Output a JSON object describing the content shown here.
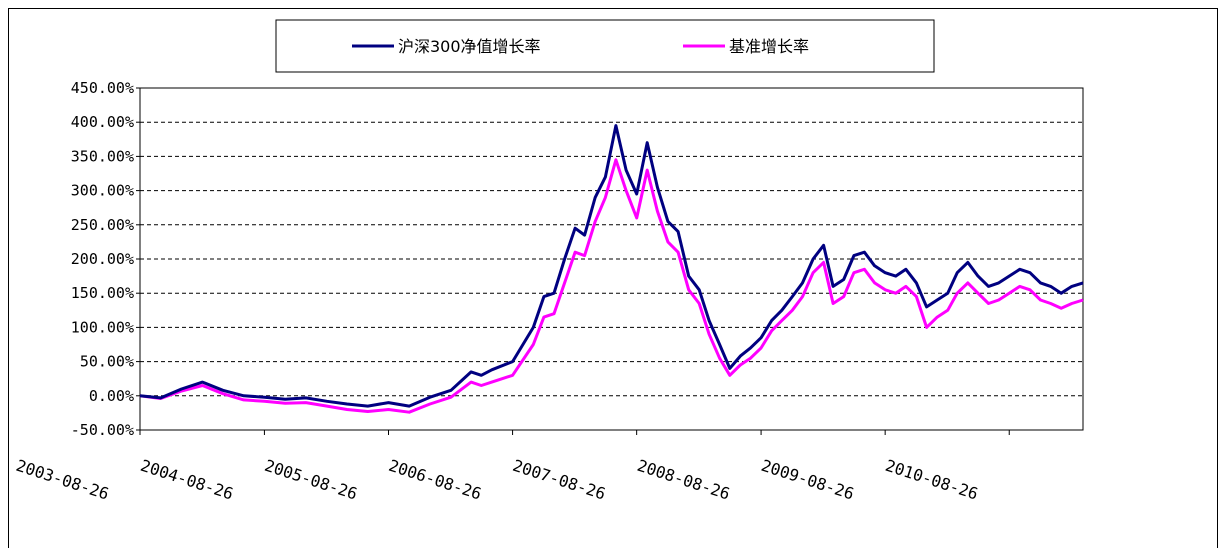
{
  "colors": {
    "series_1": "#000080",
    "series_2": "#FF00FF",
    "grid": "#000000",
    "frame": "#000000"
  },
  "chart_data": {
    "type": "line",
    "title": "",
    "xlabel": "",
    "ylabel": "",
    "ylim": [
      -50,
      450
    ],
    "y_ticks": [
      -50,
      0,
      50,
      100,
      150,
      200,
      250,
      300,
      350,
      400,
      450
    ],
    "y_tick_labels": [
      "-50.00%",
      "0.00%",
      "50.00%",
      "100.00%",
      "150.00%",
      "200.00%",
      "250.00%",
      "300.00%",
      "350.00%",
      "400.00%",
      "450.00%"
    ],
    "x_tick_labels": [
      "2003-08-26",
      "2004-08-26",
      "2005-08-26",
      "2006-08-26",
      "2007-08-26",
      "2008-08-26",
      "2009-08-26",
      "2010-08-26"
    ],
    "x_range": [
      "2003-08-26",
      "2011-03-31"
    ],
    "grid": "horizontal dashed",
    "legend_position": "top-center",
    "series": [
      {
        "name": "沪深300净值增长率",
        "x": [
          "2003-08-26",
          "2003-10-26",
          "2003-12-26",
          "2004-02-26",
          "2004-04-26",
          "2004-06-26",
          "2004-08-26",
          "2004-10-26",
          "2004-12-26",
          "2005-02-26",
          "2005-04-26",
          "2005-06-26",
          "2005-08-26",
          "2005-10-26",
          "2005-12-26",
          "2006-02-26",
          "2006-04-26",
          "2006-05-26",
          "2006-06-26",
          "2006-08-26",
          "2006-10-26",
          "2006-11-26",
          "2006-12-26",
          "2007-01-26",
          "2007-02-26",
          "2007-03-26",
          "2007-04-26",
          "2007-05-26",
          "2007-06-26",
          "2007-07-26",
          "2007-08-26",
          "2007-09-26",
          "2007-10-26",
          "2007-11-26",
          "2007-12-26",
          "2008-01-26",
          "2008-02-26",
          "2008-03-26",
          "2008-04-26",
          "2008-05-26",
          "2008-06-26",
          "2008-07-26",
          "2008-08-26",
          "2008-09-26",
          "2008-10-26",
          "2008-11-26",
          "2008-12-26",
          "2009-01-26",
          "2009-02-26",
          "2009-03-26",
          "2009-04-26",
          "2009-05-26",
          "2009-06-26",
          "2009-07-26",
          "2009-08-26",
          "2009-09-26",
          "2009-10-26",
          "2009-11-26",
          "2009-12-26",
          "2010-01-26",
          "2010-02-26",
          "2010-03-26",
          "2010-04-26",
          "2010-05-26",
          "2010-06-26",
          "2010-07-26",
          "2010-08-26",
          "2010-09-26",
          "2010-10-26",
          "2010-11-26",
          "2010-12-26",
          "2011-01-26",
          "2011-02-26",
          "2011-03-31"
        ],
        "y": [
          0,
          -3,
          10,
          20,
          8,
          0,
          -2,
          -5,
          -3,
          -8,
          -12,
          -15,
          -10,
          -15,
          -2,
          8,
          35,
          30,
          38,
          50,
          100,
          145,
          150,
          200,
          245,
          235,
          290,
          320,
          395,
          330,
          295,
          370,
          305,
          255,
          240,
          175,
          155,
          110,
          75,
          40,
          58,
          70,
          85,
          110,
          125,
          145,
          165,
          200,
          220,
          160,
          170,
          205,
          210,
          190,
          180,
          175,
          185,
          165,
          130,
          140,
          150,
          180,
          195,
          175,
          160,
          165,
          175,
          185,
          180,
          165,
          160,
          150,
          160,
          165
        ],
        "values": [
          0,
          -3,
          10,
          20,
          8,
          0,
          -2,
          -5,
          -3,
          -8,
          -12,
          -15,
          -10,
          -15,
          -2,
          8,
          35,
          30,
          38,
          50,
          100,
          145,
          150,
          200,
          245,
          235,
          290,
          320,
          395,
          330,
          295,
          370,
          305,
          255,
          240,
          175,
          155,
          110,
          75,
          40,
          58,
          70,
          85,
          110,
          125,
          145,
          165,
          200,
          220,
          160,
          170,
          205,
          210,
          190,
          180,
          175,
          185,
          165,
          130,
          140,
          150,
          180,
          195,
          175,
          160,
          165,
          175,
          185,
          180,
          165,
          160,
          150,
          160,
          165
        ]
      },
      {
        "name": "基准增长率",
        "x": [
          "2003-08-26",
          "2003-10-26",
          "2003-12-26",
          "2004-02-26",
          "2004-04-26",
          "2004-06-26",
          "2004-08-26",
          "2004-10-26",
          "2004-12-26",
          "2005-02-26",
          "2005-04-26",
          "2005-06-26",
          "2005-08-26",
          "2005-10-26",
          "2005-12-26",
          "2006-02-26",
          "2006-04-26",
          "2006-05-26",
          "2006-06-26",
          "2006-08-26",
          "2006-10-26",
          "2006-11-26",
          "2006-12-26",
          "2007-01-26",
          "2007-02-26",
          "2007-03-26",
          "2007-04-26",
          "2007-05-26",
          "2007-06-26",
          "2007-07-26",
          "2007-08-26",
          "2007-09-26",
          "2007-10-26",
          "2007-11-26",
          "2007-12-26",
          "2008-01-26",
          "2008-02-26",
          "2008-03-26",
          "2008-04-26",
          "2008-05-26",
          "2008-06-26",
          "2008-07-26",
          "2008-08-26",
          "2008-09-26",
          "2008-10-26",
          "2008-11-26",
          "2008-12-26",
          "2009-01-26",
          "2009-02-26",
          "2009-03-26",
          "2009-04-26",
          "2009-05-26",
          "2009-06-26",
          "2009-07-26",
          "2009-08-26",
          "2009-09-26",
          "2009-10-26",
          "2009-11-26",
          "2009-12-26",
          "2010-01-26",
          "2010-02-26",
          "2010-03-26",
          "2010-04-26",
          "2010-05-26",
          "2010-06-26",
          "2010-07-26",
          "2010-08-26",
          "2010-09-26",
          "2010-10-26",
          "2010-11-26",
          "2010-12-26",
          "2011-01-26",
          "2011-02-26",
          "2011-03-31"
        ],
        "y": [
          0,
          -4,
          7,
          15,
          3,
          -6,
          -8,
          -11,
          -10,
          -15,
          -20,
          -23,
          -20,
          -24,
          -12,
          -2,
          20,
          15,
          20,
          30,
          75,
          115,
          120,
          165,
          210,
          205,
          255,
          290,
          345,
          300,
          260,
          330,
          270,
          225,
          210,
          155,
          135,
          90,
          55,
          30,
          45,
          55,
          70,
          95,
          110,
          125,
          145,
          180,
          195,
          135,
          145,
          180,
          185,
          165,
          155,
          150,
          160,
          145,
          100,
          115,
          125,
          150,
          165,
          150,
          135,
          140,
          150,
          160,
          155,
          140,
          135,
          128,
          135,
          140
        ],
        "values": [
          0,
          -4,
          7,
          15,
          3,
          -6,
          -8,
          -11,
          -10,
          -15,
          -20,
          -23,
          -20,
          -24,
          -12,
          -2,
          20,
          15,
          20,
          30,
          75,
          115,
          120,
          165,
          210,
          205,
          255,
          290,
          345,
          300,
          260,
          330,
          270,
          225,
          210,
          155,
          135,
          90,
          55,
          30,
          45,
          55,
          70,
          95,
          110,
          125,
          145,
          180,
          195,
          135,
          145,
          180,
          185,
          165,
          155,
          150,
          160,
          145,
          100,
          115,
          125,
          150,
          165,
          150,
          135,
          140,
          150,
          160,
          155,
          140,
          135,
          128,
          135,
          140
        ]
      }
    ]
  }
}
